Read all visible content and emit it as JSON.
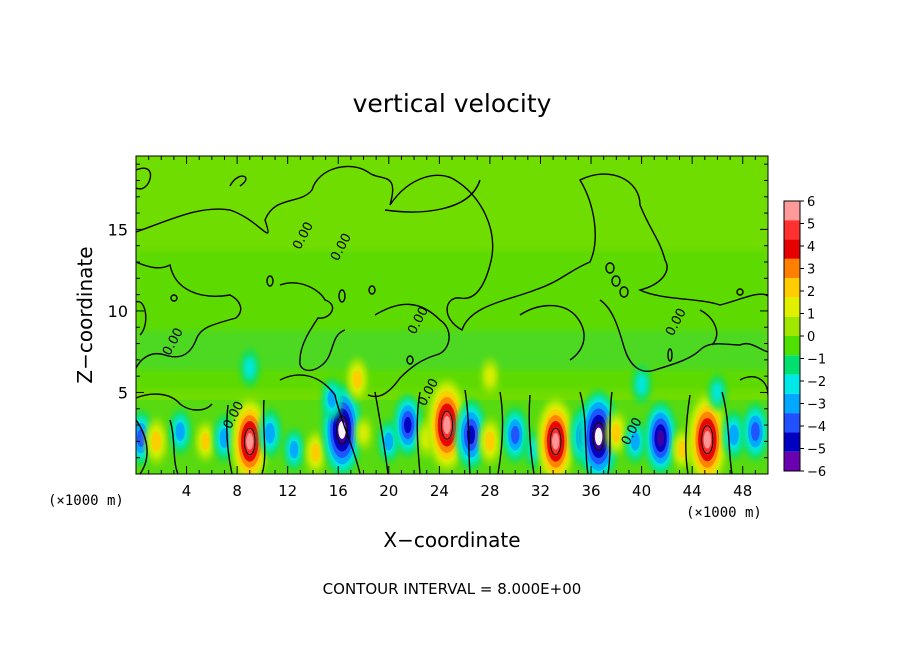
{
  "chart_data": {
    "type": "heatmap",
    "title": "vertical velocity",
    "xlabel": "X−coordinate",
    "ylabel": "Z−coordinate",
    "x_unit": "(×1000 m)",
    "y_unit": "(×1000 m)",
    "footer": "CONTOUR INTERVAL = 8.000E+00",
    "xlim": [
      0,
      50
    ],
    "ylim": [
      0,
      19.5
    ],
    "x_ticks": [
      4,
      8,
      12,
      16,
      20,
      24,
      28,
      32,
      36,
      40,
      44,
      48
    ],
    "y_ticks": [
      5,
      10,
      15
    ],
    "colorbar": {
      "range": [
        -6,
        6
      ],
      "labels": [
        "6",
        "5",
        "4",
        "3",
        "2",
        "1",
        "0",
        "−1",
        "−2",
        "−3",
        "−4",
        "−5",
        "−6"
      ],
      "colors": [
        "#ff9a9a",
        "#ff3030",
        "#e60000",
        "#ff8000",
        "#ffcc00",
        "#e0f000",
        "#a0e600",
        "#50e000",
        "#00e070",
        "#00e8e8",
        "#00a8ff",
        "#2050ff",
        "#0000c0",
        "#6a00b0"
      ]
    },
    "contour_label": "0.00",
    "contour_label_positions": [
      [
        8,
        3.5
      ],
      [
        13.5,
        14.5
      ],
      [
        16.5,
        13.8
      ],
      [
        22.6,
        9.3
      ],
      [
        23.4,
        4.9
      ],
      [
        39.5,
        2.5
      ],
      [
        43,
        9.2
      ],
      [
        3.2,
        8
      ]
    ],
    "cells": [
      {
        "x": 0.4,
        "z": 2.2,
        "w": -2.5
      },
      {
        "x": 1.6,
        "z": 2.0,
        "w": 1.8
      },
      {
        "x": 3.5,
        "z": 2.6,
        "w": -1.6
      },
      {
        "x": 5.5,
        "z": 2.0,
        "w": 1.2
      },
      {
        "x": 7.0,
        "z": 2.2,
        "w": -1.8
      },
      {
        "x": 9.0,
        "z": 2.0,
        "w": 5.5
      },
      {
        "x": 10.6,
        "z": 2.5,
        "w": -2.0
      },
      {
        "x": 12.5,
        "z": 1.5,
        "w": -1.3
      },
      {
        "x": 14.2,
        "z": 1.3,
        "w": 1.5
      },
      {
        "x": 16.3,
        "z": 2.7,
        "w": -6.0
      },
      {
        "x": 18.0,
        "z": 2.5,
        "w": 0.6
      },
      {
        "x": 20.0,
        "z": 2.0,
        "w": -1.4
      },
      {
        "x": 21.5,
        "z": 3.0,
        "w": -3.2
      },
      {
        "x": 23.0,
        "z": 2.2,
        "w": 1.0
      },
      {
        "x": 24.6,
        "z": 3.0,
        "w": 6.0
      },
      {
        "x": 26.5,
        "z": 2.4,
        "w": -4.0
      },
      {
        "x": 28.0,
        "z": 2.0,
        "w": 1.8
      },
      {
        "x": 30.0,
        "z": 2.4,
        "w": -2.6
      },
      {
        "x": 31.5,
        "z": 1.5,
        "w": -1.0
      },
      {
        "x": 33.2,
        "z": 2.0,
        "w": 5.5
      },
      {
        "x": 35.4,
        "z": 2.3,
        "w": -3.0
      },
      {
        "x": 36.6,
        "z": 2.3,
        "w": -6.0
      },
      {
        "x": 38.0,
        "z": 2.5,
        "w": 1.6
      },
      {
        "x": 39.5,
        "z": 2.0,
        "w": -1.5
      },
      {
        "x": 41.5,
        "z": 2.2,
        "w": -4.2
      },
      {
        "x": 43.2,
        "z": 1.5,
        "w": 1.2
      },
      {
        "x": 45.2,
        "z": 2.1,
        "w": 6.0
      },
      {
        "x": 47.3,
        "z": 2.4,
        "w": -2.0
      },
      {
        "x": 49.0,
        "z": 2.6,
        "w": -2.8
      },
      {
        "x": 15.5,
        "z": 4.6,
        "w": -1.3
      },
      {
        "x": 17.5,
        "z": 5.8,
        "w": 1.5
      },
      {
        "x": 9.0,
        "z": 6.5,
        "w": -0.9
      },
      {
        "x": 40.0,
        "z": 5.5,
        "w": -1.0
      },
      {
        "x": 46.0,
        "z": 5.0,
        "w": -0.8
      },
      {
        "x": 28.0,
        "z": 6.0,
        "w": 0.8
      }
    ]
  }
}
